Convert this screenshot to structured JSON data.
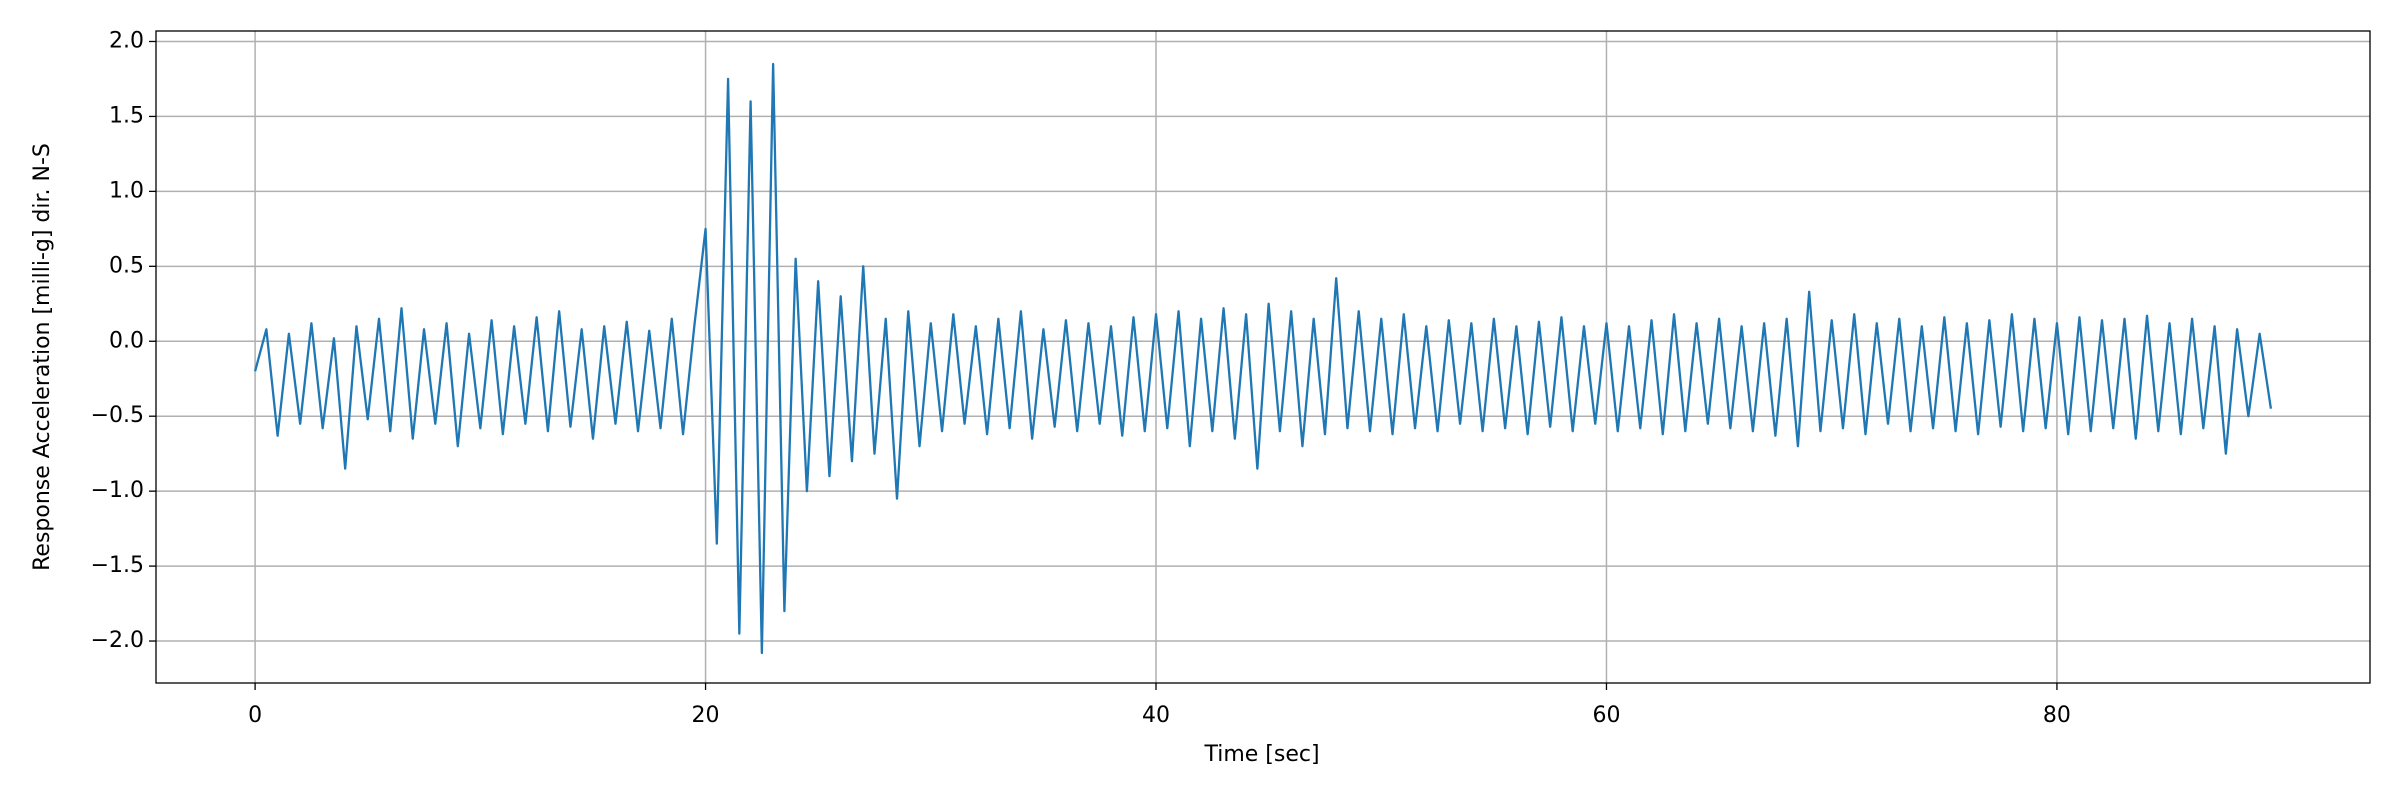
{
  "chart_data": {
    "type": "line",
    "x_label": "Time [sec]",
    "y_label": "Response Acceleration [milli-g] dir. N-S",
    "xlim": [
      -4.4,
      93.9
    ],
    "ylim": [
      -2.28,
      2.07
    ],
    "xticks": [
      0,
      20,
      40,
      60,
      80
    ],
    "yticks": [
      {
        "value": -2.0,
        "label": "−2.0"
      },
      {
        "value": -1.5,
        "label": "−1.5"
      },
      {
        "value": -1.0,
        "label": "−1.0"
      },
      {
        "value": -0.5,
        "label": "−0.5"
      },
      {
        "value": 0.0,
        "label": "0.0"
      },
      {
        "value": 0.5,
        "label": "0.5"
      },
      {
        "value": 1.0,
        "label": "1.0"
      },
      {
        "value": 1.5,
        "label": "1.5"
      },
      {
        "value": 2.0,
        "label": "2.0"
      }
    ],
    "grid": true,
    "x": [
      0,
      0.5,
      1,
      1.5,
      2,
      2.5,
      3,
      3.5,
      4,
      4.5,
      5,
      5.5,
      6,
      6.5,
      7,
      7.5,
      8,
      8.5,
      9,
      9.5,
      10,
      10.5,
      11,
      11.5,
      12,
      12.5,
      13,
      13.5,
      14,
      14.5,
      15,
      15.5,
      16,
      16.5,
      17,
      17.5,
      18,
      18.5,
      19,
      19.5,
      20,
      20.5,
      21,
      21.5,
      22,
      22.5,
      23,
      23.5,
      24,
      24.5,
      25,
      25.5,
      26,
      26.5,
      27,
      27.5,
      28,
      28.5,
      29,
      29.5,
      30,
      30.5,
      31,
      31.5,
      32,
      32.5,
      33,
      33.5,
      34,
      34.5,
      35,
      35.5,
      36,
      36.5,
      37,
      37.5,
      38,
      38.5,
      39,
      39.5,
      40,
      40.5,
      41,
      41.5,
      42,
      42.5,
      43,
      43.5,
      44,
      44.5,
      45,
      45.5,
      46,
      46.5,
      47,
      47.5,
      48,
      48.5,
      49,
      49.5,
      50,
      50.5,
      51,
      51.5,
      52,
      52.5,
      53,
      53.5,
      54,
      54.5,
      55,
      55.5,
      56,
      56.5,
      57,
      57.5,
      58,
      58.5,
      59,
      59.5,
      60,
      60.5,
      61,
      61.5,
      62,
      62.5,
      63,
      63.5,
      64,
      64.5,
      65,
      65.5,
      66,
      66.5,
      67,
      67.5,
      68,
      68.5,
      69,
      69.5,
      70,
      70.5,
      71,
      71.5,
      72,
      72.5,
      73,
      73.5,
      74,
      74.5,
      75,
      75.5,
      76,
      76.5,
      77,
      77.5,
      78,
      78.5,
      79,
      79.5,
      80,
      80.5,
      81,
      81.5,
      82,
      82.5,
      83,
      83.5,
      84,
      84.5,
      85,
      85.5,
      86,
      86.5,
      87,
      87.5,
      88,
      88.5,
      89,
      89.5
    ],
    "series": [
      {
        "color": "#1f77b4",
        "values": [
          -0.2,
          0.08,
          -0.63,
          0.05,
          -0.55,
          0.12,
          -0.58,
          0.02,
          -0.85,
          0.1,
          -0.52,
          0.15,
          -0.6,
          0.22,
          -0.65,
          0.08,
          -0.55,
          0.12,
          -0.7,
          0.05,
          -0.58,
          0.14,
          -0.62,
          0.1,
          -0.55,
          0.16,
          -0.6,
          0.2,
          -0.57,
          0.08,
          -0.65,
          0.1,
          -0.55,
          0.13,
          -0.6,
          0.07,
          -0.58,
          0.15,
          -0.62,
          0.1,
          0.75,
          -1.35,
          1.75,
          -1.95,
          1.6,
          -2.08,
          1.85,
          -1.8,
          0.55,
          -1.0,
          0.4,
          -0.9,
          0.3,
          -0.8,
          0.5,
          -0.75,
          0.15,
          -1.05,
          0.2,
          -0.7,
          0.12,
          -0.6,
          0.18,
          -0.55,
          0.1,
          -0.62,
          0.15,
          -0.58,
          0.2,
          -0.65,
          0.08,
          -0.57,
          0.14,
          -0.6,
          0.12,
          -0.55,
          0.1,
          -0.63,
          0.16,
          -0.6,
          0.18,
          -0.58,
          0.2,
          -0.7,
          0.15,
          -0.6,
          0.22,
          -0.65,
          0.18,
          -0.85,
          0.25,
          -0.6,
          0.2,
          -0.7,
          0.15,
          -0.62,
          0.42,
          -0.58,
          0.2,
          -0.6,
          0.15,
          -0.62,
          0.18,
          -0.58,
          0.1,
          -0.6,
          0.14,
          -0.55,
          0.12,
          -0.6,
          0.15,
          -0.58,
          0.1,
          -0.62,
          0.13,
          -0.57,
          0.16,
          -0.6,
          0.1,
          -0.55,
          0.12,
          -0.6,
          0.1,
          -0.58,
          0.14,
          -0.62,
          0.18,
          -0.6,
          0.12,
          -0.55,
          0.15,
          -0.58,
          0.1,
          -0.6,
          0.12,
          -0.63,
          0.15,
          -0.7,
          0.33,
          -0.6,
          0.14,
          -0.58,
          0.18,
          -0.62,
          0.12,
          -0.55,
          0.15,
          -0.6,
          0.1,
          -0.58,
          0.16,
          -0.6,
          0.12,
          -0.62,
          0.14,
          -0.57,
          0.18,
          -0.6,
          0.15,
          -0.58,
          0.12,
          -0.62,
          0.16,
          -0.6,
          0.14,
          -0.58,
          0.15,
          -0.65,
          0.17,
          -0.6,
          0.12,
          -0.62,
          0.15,
          -0.58,
          0.1,
          -0.75,
          0.08,
          -0.5,
          0.05,
          -0.45
        ]
      }
    ]
  }
}
